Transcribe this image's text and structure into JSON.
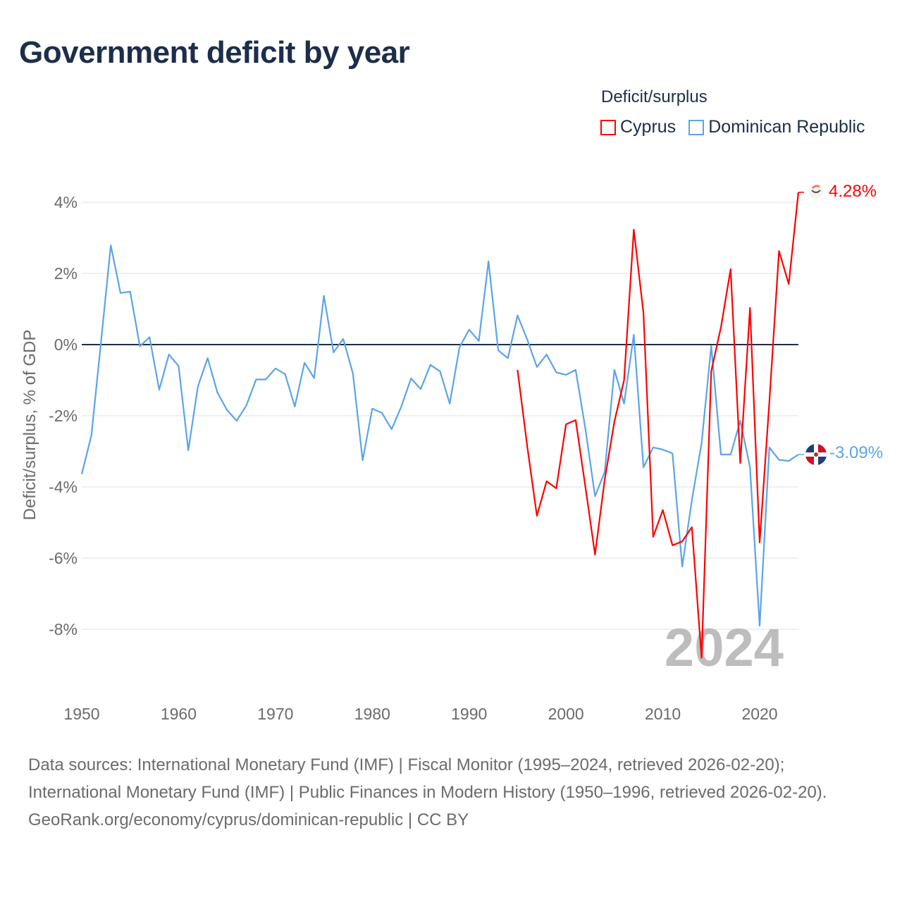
{
  "title": "Government deficit by year",
  "legend": {
    "title": "Deficit/surplus",
    "items": [
      {
        "label": "Cyprus",
        "color": "#ff0000"
      },
      {
        "label": "Dominican Republic",
        "color": "#5ba4e8"
      }
    ]
  },
  "watermark_year": "2024",
  "end_labels": {
    "cyprus": "4.28%",
    "dominican_republic": "-3.09%"
  },
  "footer": {
    "sources": "Data sources: International Monetary Fund (IMF) | Fiscal Monitor (1995–2024, retrieved 2026-02-20); International Monetary Fund (IMF) | Public Finances in Modern History (1950–1996, retrieved 2026-02-20).",
    "credit": "GeoRank.org/economy/cyprus/dominican-republic | CC BY"
  },
  "chart_data": {
    "type": "line",
    "title": "Government deficit by year",
    "xlabel": "",
    "ylabel": "Deficit/surplus, % of GDP",
    "xlim": [
      1950,
      2024
    ],
    "ylim": [
      -9.5,
      4.3
    ],
    "x_ticks": [
      1950,
      1960,
      1970,
      1980,
      1990,
      2000,
      2010,
      2020
    ],
    "y_ticks": [
      4,
      2,
      0,
      -2,
      -4,
      -6,
      -8
    ],
    "y_tick_labels": [
      "4%",
      "2%",
      "0%",
      "-2%",
      "-4%",
      "-6%",
      "-8%"
    ],
    "legend_position": "top-right",
    "grid": true,
    "series": [
      {
        "name": "Cyprus",
        "color": "#ff0000",
        "start_year": 1995,
        "values": [
          -0.71,
          -2.86,
          -4.81,
          -3.84,
          -4.04,
          -2.24,
          -2.12,
          -3.98,
          -5.9,
          -3.8,
          -2.16,
          -1.0,
          3.23,
          0.89,
          -5.4,
          -4.65,
          -5.64,
          -5.53,
          -5.13,
          -8.8,
          -0.75,
          0.49,
          2.12,
          -3.33,
          1.03,
          -5.56,
          -1.6,
          2.63,
          1.7,
          4.28
        ]
      },
      {
        "name": "Dominican Republic",
        "color": "#5ba4e8",
        "start_year": 1950,
        "values": [
          -3.64,
          -2.55,
          0.1,
          2.79,
          1.45,
          1.49,
          -0.05,
          0.21,
          -1.27,
          -0.28,
          -0.6,
          -2.97,
          -1.17,
          -0.38,
          -1.34,
          -1.84,
          -2.14,
          -1.71,
          -0.98,
          -0.98,
          -0.67,
          -0.83,
          -1.74,
          -0.51,
          -0.94,
          1.37,
          -0.22,
          0.16,
          -0.81,
          -3.25,
          -1.8,
          -1.92,
          -2.38,
          -1.74,
          -0.95,
          -1.25,
          -0.57,
          -0.75,
          -1.66,
          -0.08,
          0.42,
          0.1,
          2.34,
          -0.16,
          -0.38,
          0.82,
          0.14,
          -0.63,
          -0.28,
          -0.78,
          -0.85,
          -0.71,
          -2.35,
          -4.26,
          -3.58,
          -0.71,
          -1.66,
          0.28,
          -3.45,
          -2.89,
          -2.95,
          -3.06,
          -6.24,
          -4.37,
          -2.77,
          -0.04,
          -3.09,
          -3.09,
          -2.14,
          -3.45,
          -7.9,
          -2.89,
          -3.24,
          -3.27,
          -3.09
        ]
      }
    ]
  }
}
